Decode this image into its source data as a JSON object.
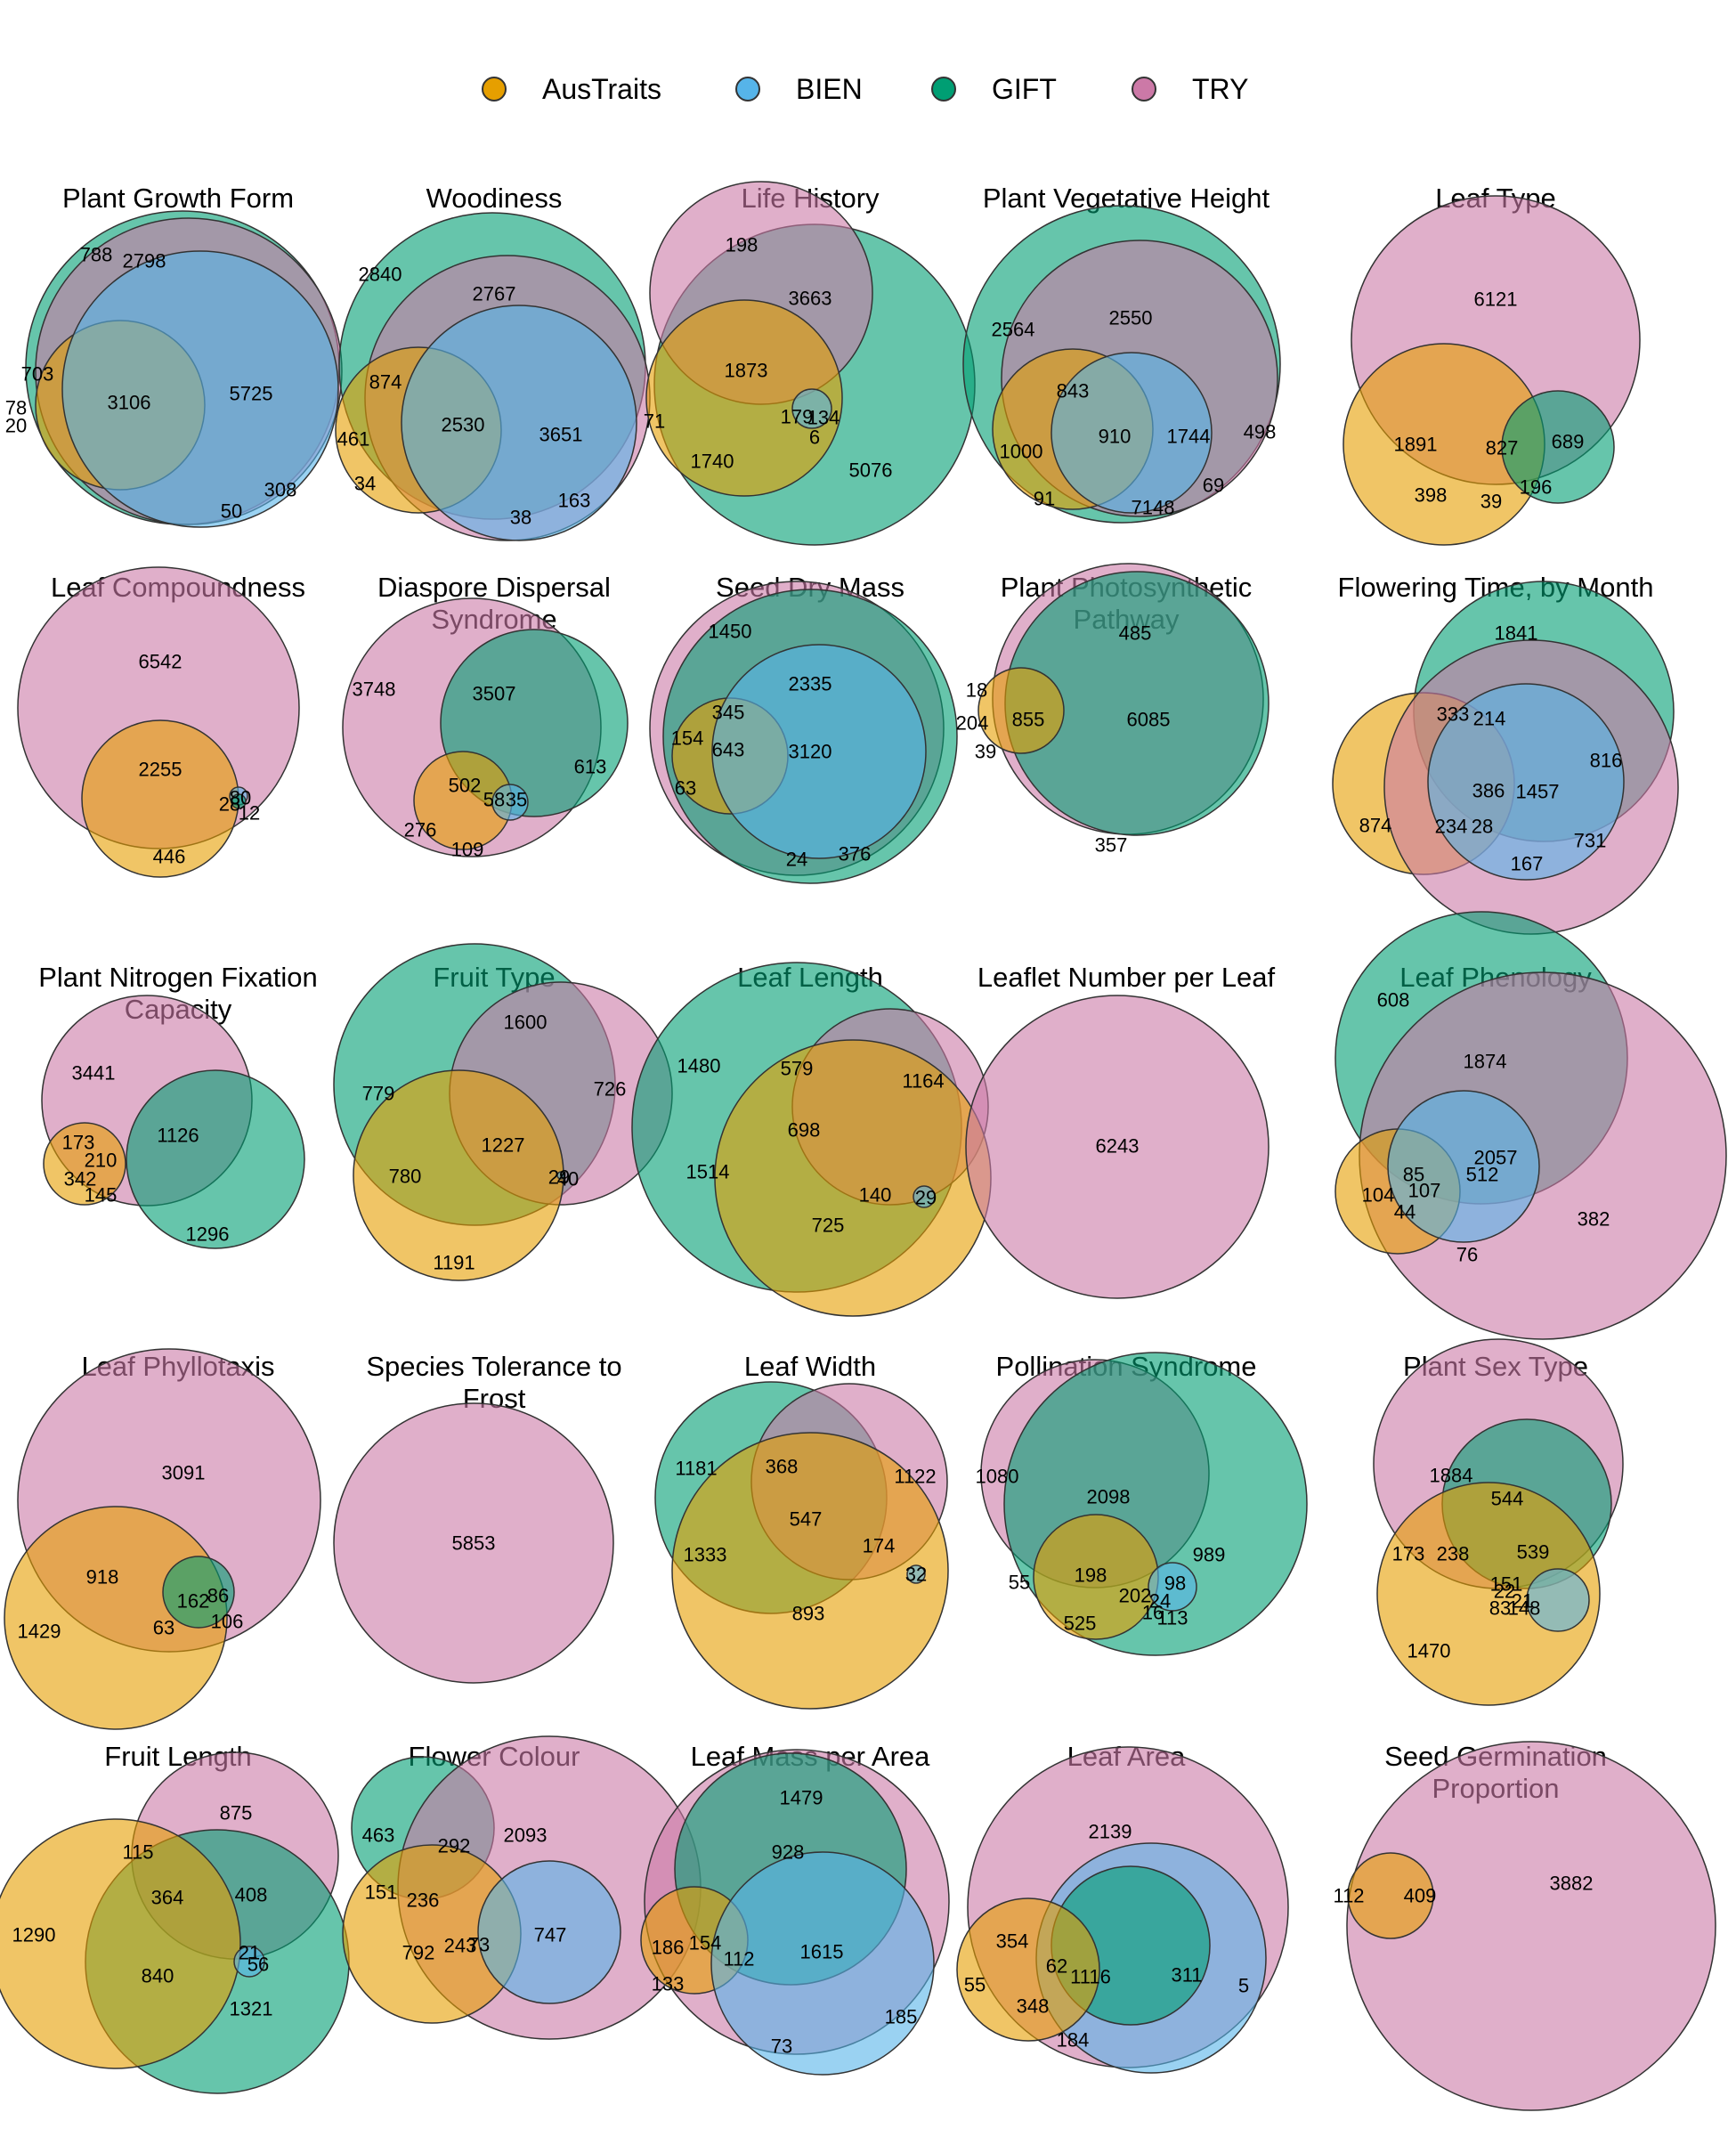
{
  "legend": {
    "items": [
      {
        "name": "AusTraits",
        "color": "#E69F00"
      },
      {
        "name": "BIEN",
        "color": "#56B4E9"
      },
      {
        "name": "GIFT",
        "color": "#009E73"
      },
      {
        "name": "TRY",
        "color": "#CC79A7"
      }
    ]
  },
  "chart_data": [
    {
      "type": "venn",
      "title": "Plant Growth Form",
      "labels": [
        788,
        2798,
        703,
        3106,
        5725,
        78,
        20,
        308,
        50
      ]
    },
    {
      "type": "venn",
      "title": "Woodiness",
      "labels": [
        2840,
        2767,
        874,
        461,
        2530,
        3651,
        34,
        38,
        163
      ]
    },
    {
      "type": "venn",
      "title": "Life History",
      "labels": [
        198,
        3663,
        1873,
        179,
        134,
        6,
        71,
        1740,
        5076
      ]
    },
    {
      "type": "venn",
      "title": "Plant Vegetative Height",
      "labels": [
        2550,
        2564,
        843,
        910,
        1744,
        1000,
        498,
        91,
        7148,
        69
      ]
    },
    {
      "type": "venn",
      "title": "Leaf Type",
      "labels": [
        6121,
        1891,
        827,
        689,
        398,
        39,
        196
      ]
    },
    {
      "type": "venn",
      "title": "Leaf Compoundness",
      "labels": [
        6542,
        2255,
        28,
        80,
        12,
        446
      ]
    },
    {
      "type": "venn",
      "title": "Diaspore Dispersal\nSyndrome",
      "labels": [
        3748,
        3507,
        613,
        502,
        58,
        35,
        276,
        109
      ]
    },
    {
      "type": "venn",
      "title": "Seed Dry Mass",
      "labels": [
        1450,
        2335,
        345,
        154,
        643,
        3120,
        63,
        24,
        376
      ]
    },
    {
      "type": "venn",
      "title": "Plant Photosynthetic\nPathway",
      "labels": [
        485,
        18,
        204,
        855,
        6085,
        39,
        357
      ]
    },
    {
      "type": "venn",
      "title": "Flowering Time, by Month",
      "labels": [
        1841,
        333,
        214,
        816,
        874,
        386,
        1457,
        234,
        28,
        167,
        731
      ]
    },
    {
      "type": "venn",
      "title": "Plant Nitrogen Fixation\nCapacity",
      "labels": [
        3441,
        173,
        1126,
        342,
        210,
        145,
        1296
      ]
    },
    {
      "type": "venn",
      "title": "Fruit Type",
      "labels": [
        1600,
        779,
        726,
        1227,
        780,
        29,
        40,
        1191
      ]
    },
    {
      "type": "venn",
      "title": "Leaf Length",
      "labels": [
        1480,
        579,
        1164,
        698,
        1514,
        140,
        29,
        725
      ]
    },
    {
      "type": "venn",
      "title": "Leaflet Number per Leaf",
      "labels": [
        6243
      ]
    },
    {
      "type": "venn",
      "title": "Leaf Phenology",
      "labels": [
        608,
        1874,
        85,
        107,
        512,
        104,
        44,
        76,
        382,
        2057
      ]
    },
    {
      "type": "venn",
      "title": "Leaf Phyllotaxis",
      "labels": [
        3091,
        918,
        162,
        86,
        1429,
        63,
        106
      ]
    },
    {
      "type": "venn",
      "title": "Species Tolerance to\nFrost",
      "labels": [
        5853
      ]
    },
    {
      "type": "venn",
      "title": "Leaf Width",
      "labels": [
        1181,
        368,
        1122,
        547,
        1333,
        174,
        32,
        893
      ]
    },
    {
      "type": "venn",
      "title": "Pollination Syndrome",
      "labels": [
        1080,
        2098,
        989,
        55,
        198,
        202,
        98,
        24,
        16,
        113,
        525
      ]
    },
    {
      "type": "venn",
      "title": "Plant Sex Type",
      "labels": [
        1884,
        544,
        173,
        238,
        539,
        151,
        21,
        22,
        83,
        148,
        1470
      ]
    },
    {
      "type": "venn",
      "title": "Fruit Length",
      "labels": [
        875,
        115,
        1290,
        364,
        408,
        21,
        56,
        840,
        1321
      ]
    },
    {
      "type": "venn",
      "title": "Flower Colour",
      "labels": [
        463,
        292,
        2093,
        151,
        236,
        792,
        243,
        73,
        747
      ]
    },
    {
      "type": "venn",
      "title": "Leaf Mass per Area",
      "labels": [
        1479,
        928,
        186,
        154,
        112,
        1615,
        133,
        185,
        73
      ]
    },
    {
      "type": "venn",
      "title": "Leaf Area",
      "labels": [
        2139,
        354,
        62,
        1116,
        311,
        55,
        348,
        5,
        184
      ]
    },
    {
      "type": "venn",
      "title": "Seed Germination\nProportion",
      "labels": [
        112,
        409,
        3882
      ]
    }
  ]
}
